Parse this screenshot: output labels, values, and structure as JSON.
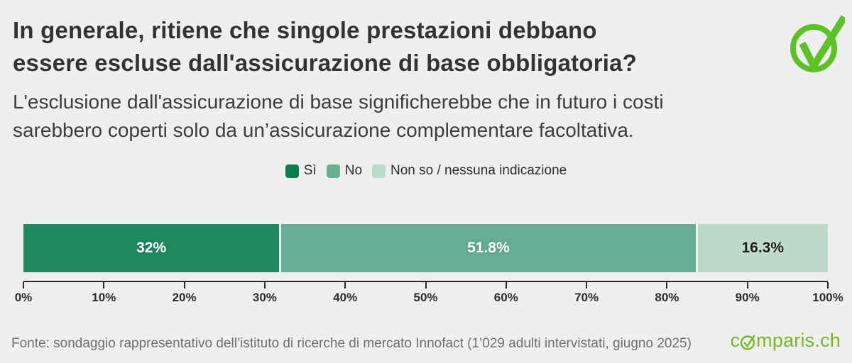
{
  "page": {
    "background": "#efefef",
    "title_lines": [
      "In generale, ritiene che singole prestazioni debbano",
      "essere escluse dall'assicurazione di base obbligatoria?"
    ],
    "subtitle_lines": [
      "L'esclusione dall'assicurazione di base significherebbe che in futuro i costi",
      "sarebbero coperti solo da un’assicurazione complementare facoltativa."
    ],
    "footer_source": "Fonte: sondaggio rappresentativo dell’istituto di ricerche di mercato Innofact (1’029 adulti intervistati, giugno 2025)",
    "logo_prefix": "c",
    "logo_suffix": "mparis.ch",
    "logo_color": "#76b82a",
    "check_icon_color": "#5cc228"
  },
  "chart_data": {
    "type": "bar",
    "orientation": "horizontal-stacked",
    "title": "In generale, ritiene che singole prestazioni debbano essere escluse dall'assicurazione di base obbligatoria?",
    "subtitle": "L'esclusione dall'assicurazione di base significherebbe che in futuro i costi sarebbero coperti solo da un’assicurazione complementare facoltativa.",
    "categories": [
      "Sì",
      "No",
      "Non so / nessuna indicazione"
    ],
    "values": [
      32,
      51.8,
      16.3
    ],
    "value_labels": [
      "32%",
      "51.8%",
      "16.3%"
    ],
    "segment_colors": [
      "#1e8a62",
      "#66ae94",
      "#bbd9c9"
    ],
    "legend_swatch_colors": [
      "#0d7c4e",
      "#68b093",
      "#bcdccb"
    ],
    "label_text_colors": [
      "#ffffff",
      "#ffffff",
      "#1d1d1b"
    ],
    "xlim": [
      0,
      100
    ],
    "x_ticks": [
      "0%",
      "10%",
      "20%",
      "30%",
      "40%",
      "50%",
      "60%",
      "70%",
      "80%",
      "90%",
      "100%"
    ],
    "legend_position": "top-center",
    "grid": false,
    "source": "Fonte: sondaggio rappresentativo dell’istituto di ricerche di mercato Innofact (1’029 adulti intervistati, giugno 2025)"
  }
}
